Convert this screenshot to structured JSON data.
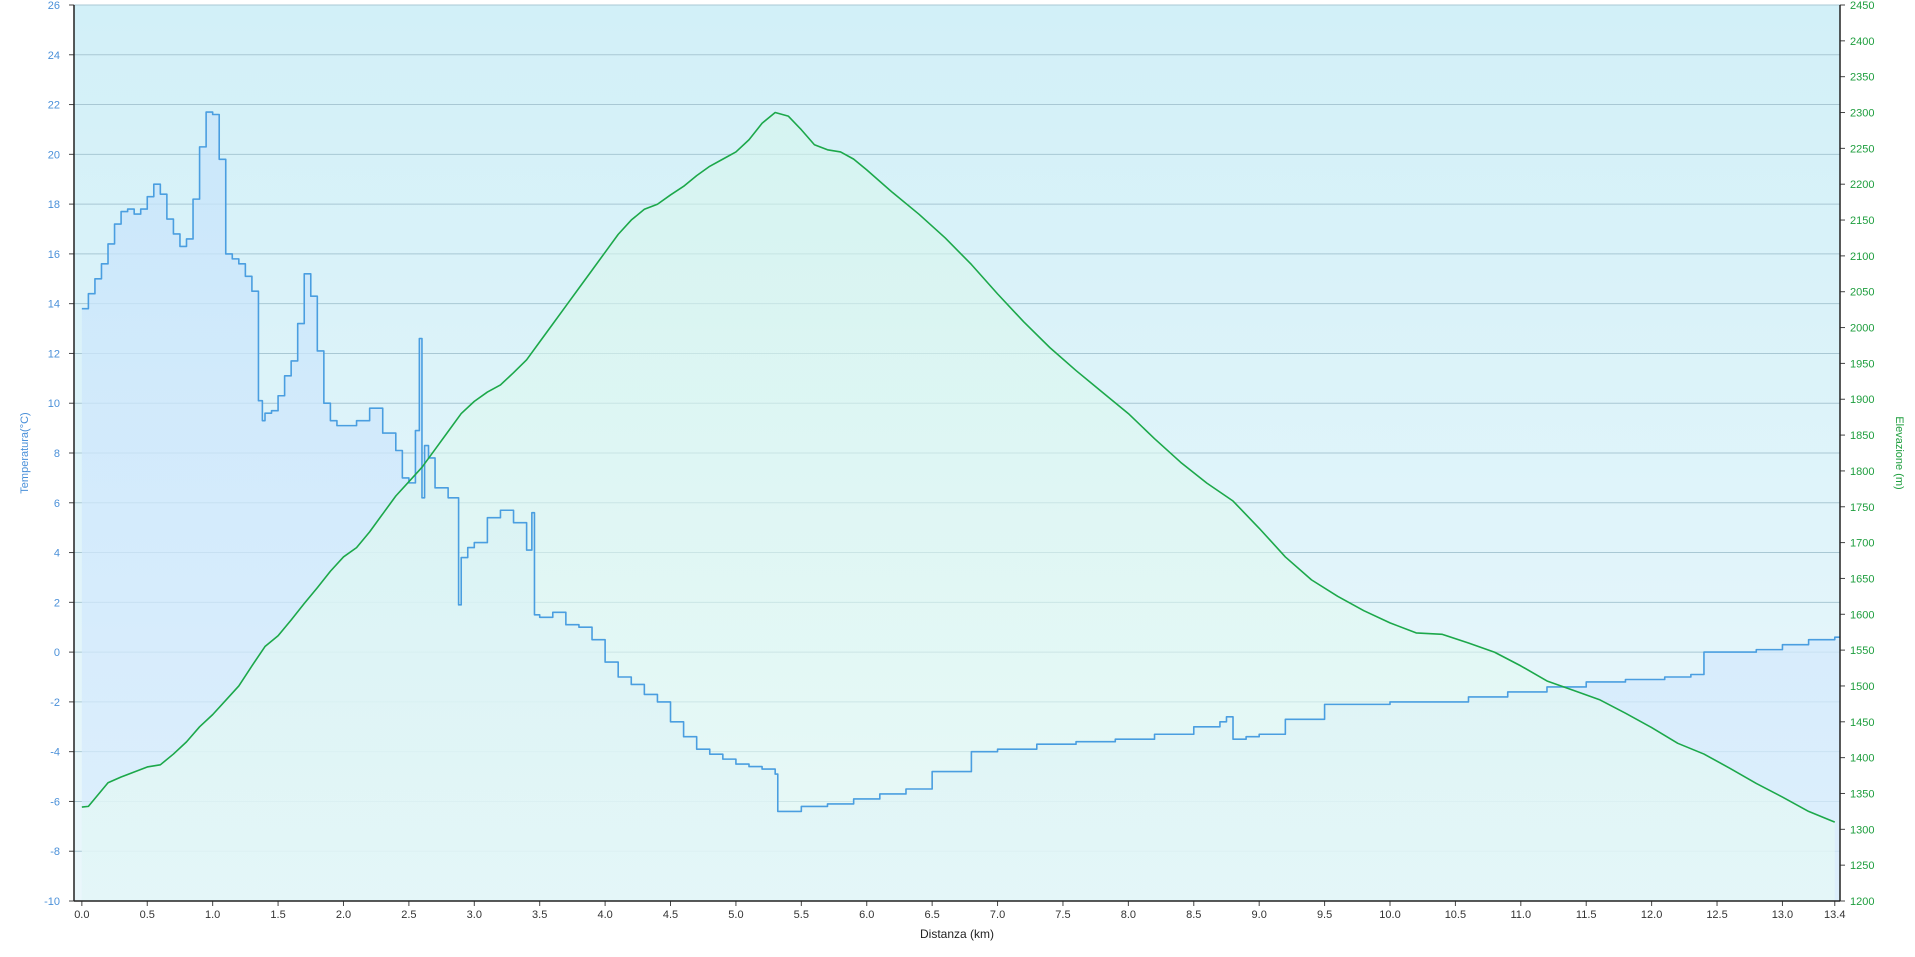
{
  "chart_data": {
    "type": "area",
    "xlabel": "Distanza  (km)",
    "x_ticks": [
      "0.0",
      "0.5",
      "1.0",
      "1.5",
      "2.0",
      "2.5",
      "3.0",
      "3.5",
      "4.0",
      "4.5",
      "5.0",
      "5.5",
      "6.0",
      "6.5",
      "7.0",
      "7.5",
      "8.0",
      "8.5",
      "9.0",
      "9.5",
      "10.0",
      "10.5",
      "11.0",
      "11.5",
      "12.0",
      "12.5",
      "13.0",
      "13.4"
    ],
    "xlim": [
      -0.06,
      13.44
    ],
    "y_left": {
      "label": "Temperatura(°C)",
      "ylim": [
        -10,
        26
      ],
      "ticks": [
        -10,
        -8,
        -6,
        -4,
        -2,
        0,
        2,
        4,
        6,
        8,
        10,
        12,
        14,
        16,
        18,
        20,
        22,
        24,
        26
      ],
      "color": "#4a90d9"
    },
    "y_right": {
      "label": "Elevazione (m)",
      "ylim": [
        1200,
        2450
      ],
      "ticks": [
        1200,
        1250,
        1300,
        1350,
        1400,
        1450,
        1500,
        1550,
        1600,
        1650,
        1700,
        1750,
        1800,
        1850,
        1900,
        1950,
        2000,
        2050,
        2100,
        2150,
        2200,
        2250,
        2300,
        2350,
        2400,
        2450
      ],
      "color": "#1e9e3e"
    },
    "grid": true,
    "series": [
      {
        "axis": "left",
        "color": "#4a9ee0",
        "x": [
          0.0,
          0.05,
          0.1,
          0.15,
          0.2,
          0.25,
          0.3,
          0.35,
          0.4,
          0.45,
          0.5,
          0.55,
          0.6,
          0.65,
          0.7,
          0.75,
          0.8,
          0.85,
          0.9,
          0.95,
          1.0,
          1.05,
          1.1,
          1.15,
          1.2,
          1.25,
          1.3,
          1.35,
          1.38,
          1.4,
          1.45,
          1.5,
          1.55,
          1.6,
          1.65,
          1.7,
          1.75,
          1.8,
          1.85,
          1.9,
          1.95,
          2.0,
          2.1,
          2.2,
          2.3,
          2.4,
          2.45,
          2.5,
          2.55,
          2.58,
          2.6,
          2.62,
          2.65,
          2.7,
          2.8,
          2.88,
          2.9,
          2.95,
          3.0,
          3.1,
          3.2,
          3.3,
          3.4,
          3.44,
          3.46,
          3.5,
          3.6,
          3.7,
          3.8,
          3.9,
          4.0,
          4.1,
          4.2,
          4.3,
          4.4,
          4.5,
          4.6,
          4.7,
          4.8,
          4.9,
          5.0,
          5.1,
          5.2,
          5.3,
          5.32,
          5.5,
          5.7,
          5.9,
          6.1,
          6.3,
          6.5,
          6.8,
          7.0,
          7.3,
          7.6,
          7.9,
          8.2,
          8.5,
          8.7,
          8.75,
          8.8,
          8.9,
          9.0,
          9.2,
          9.5,
          9.8,
          10.0,
          10.3,
          10.6,
          10.9,
          11.2,
          11.5,
          11.8,
          12.1,
          12.3,
          12.4,
          12.6,
          12.8,
          13.0,
          13.2,
          13.4
        ],
        "values": [
          13.8,
          14.4,
          15.0,
          15.6,
          16.4,
          17.2,
          17.7,
          17.8,
          17.6,
          17.8,
          18.3,
          18.8,
          18.4,
          17.4,
          16.8,
          16.3,
          16.6,
          18.2,
          20.3,
          21.7,
          21.6,
          19.8,
          16.0,
          15.8,
          15.6,
          15.1,
          14.5,
          10.1,
          9.3,
          9.6,
          9.7,
          10.3,
          11.1,
          11.7,
          13.2,
          15.2,
          14.3,
          12.1,
          10.0,
          9.3,
          9.1,
          9.1,
          9.3,
          9.8,
          8.8,
          8.1,
          7.0,
          6.8,
          8.9,
          12.6,
          6.2,
          8.3,
          7.8,
          6.6,
          6.2,
          1.9,
          3.8,
          4.2,
          4.4,
          5.4,
          5.7,
          5.2,
          4.1,
          5.6,
          1.5,
          1.4,
          1.6,
          1.1,
          1.0,
          0.5,
          -0.4,
          -1.0,
          -1.3,
          -1.7,
          -2.0,
          -2.8,
          -3.4,
          -3.9,
          -4.1,
          -4.3,
          -4.5,
          -4.6,
          -4.7,
          -4.9,
          -6.4,
          -6.2,
          -6.1,
          -5.9,
          -5.7,
          -5.5,
          -4.8,
          -4.0,
          -3.9,
          -3.7,
          -3.6,
          -3.5,
          -3.3,
          -3.0,
          -2.8,
          -2.6,
          -3.5,
          -3.4,
          -3.3,
          -2.7,
          -2.1,
          -2.1,
          -2.0,
          -2.0,
          -1.8,
          -1.6,
          -1.4,
          -1.2,
          -1.1,
          -1.0,
          -0.9,
          0.0,
          0.0,
          0.1,
          0.3,
          0.5,
          0.6
        ]
      },
      {
        "axis": "right",
        "color": "#1ca84a",
        "x": [
          0.0,
          0.05,
          0.1,
          0.2,
          0.3,
          0.4,
          0.5,
          0.6,
          0.7,
          0.8,
          0.9,
          1.0,
          1.1,
          1.2,
          1.3,
          1.4,
          1.5,
          1.6,
          1.7,
          1.8,
          1.9,
          2.0,
          2.1,
          2.2,
          2.3,
          2.4,
          2.5,
          2.6,
          2.7,
          2.8,
          2.9,
          3.0,
          3.1,
          3.2,
          3.3,
          3.4,
          3.5,
          3.6,
          3.7,
          3.8,
          3.9,
          4.0,
          4.1,
          4.2,
          4.3,
          4.4,
          4.5,
          4.6,
          4.7,
          4.8,
          4.9,
          5.0,
          5.1,
          5.2,
          5.3,
          5.4,
          5.5,
          5.6,
          5.7,
          5.8,
          5.9,
          6.0,
          6.2,
          6.4,
          6.6,
          6.8,
          7.0,
          7.2,
          7.4,
          7.6,
          7.8,
          8.0,
          8.2,
          8.4,
          8.6,
          8.8,
          9.0,
          9.2,
          9.4,
          9.6,
          9.8,
          10.0,
          10.2,
          10.4,
          10.6,
          10.8,
          11.0,
          11.2,
          11.4,
          11.6,
          11.8,
          12.0,
          12.2,
          12.4,
          12.6,
          12.8,
          13.0,
          13.2,
          13.4
        ],
        "values": [
          1331,
          1332,
          1343,
          1365,
          1373,
          1380,
          1387,
          1390,
          1405,
          1422,
          1443,
          1460,
          1480,
          1500,
          1528,
          1555,
          1570,
          1592,
          1615,
          1637,
          1660,
          1680,
          1693,
          1715,
          1740,
          1765,
          1785,
          1805,
          1830,
          1855,
          1880,
          1897,
          1910,
          1920,
          1937,
          1955,
          1980,
          2005,
          2030,
          2055,
          2080,
          2105,
          2130,
          2150,
          2165,
          2172,
          2185,
          2197,
          2212,
          2225,
          2235,
          2245,
          2262,
          2285,
          2300,
          2295,
          2276,
          2255,
          2248,
          2245,
          2235,
          2220,
          2188,
          2158,
          2125,
          2088,
          2047,
          2008,
          1972,
          1940,
          1910,
          1880,
          1845,
          1812,
          1783,
          1758,
          1720,
          1680,
          1648,
          1625,
          1605,
          1588,
          1574,
          1572,
          1560,
          1547,
          1528,
          1507,
          1494,
          1481,
          1462,
          1442,
          1420,
          1405,
          1385,
          1364,
          1345,
          1325,
          1310
        ]
      }
    ]
  }
}
